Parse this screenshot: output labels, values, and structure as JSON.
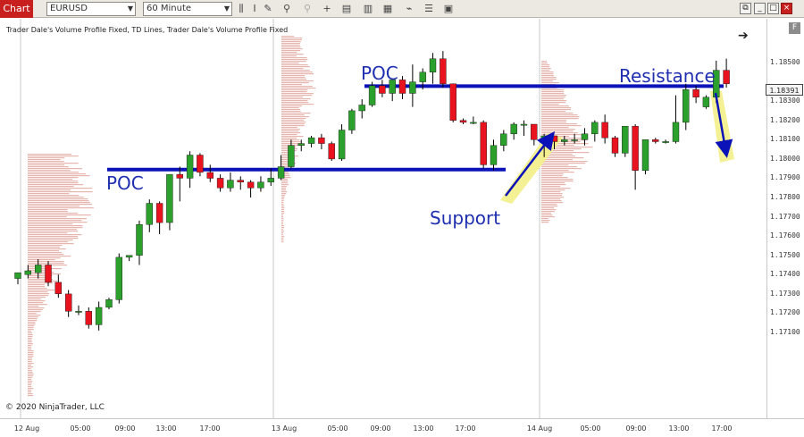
{
  "toolbar": {
    "tab_label": "Chart",
    "instrument": "EURUSD",
    "period": "60 Minute",
    "icons": [
      "bar-type-icon",
      "text-icon",
      "pencil-icon",
      "zoom-in-icon",
      "zoom-out-icon",
      "crosshair-icon",
      "data-box-icon",
      "indicators-icon",
      "strategies-icon",
      "drawing-tools-icon",
      "properties-icon",
      "templates-icon"
    ],
    "window_buttons": [
      "restore-icon",
      "minimize-icon",
      "maximize-icon",
      "close-icon"
    ]
  },
  "legend": "Trader Dale's Volume Profile Fixed, TD Lines, Trader Dale's Volume Profile Fixed",
  "copyright": "© 2020 NinjaTrader, LLC",
  "f_button": "F",
  "current_price": "1.18391",
  "annotations": {
    "poc_left": "POC",
    "poc_top": "POC",
    "support": "Support",
    "resistance": "Resistance"
  },
  "colors": {
    "up_candle": "#2ca02c",
    "down_candle": "#e8131f",
    "level_line": "#0b12b8",
    "profile": "#e5b5ae",
    "highlight": "#f3f08a",
    "annotation_text": "#1f2fb0"
  },
  "chart_data": {
    "type": "candlestick",
    "instrument": "EURUSD",
    "timeframe": "60 Minute",
    "y_ticks": [
      "1.18500",
      "1.18300",
      "1.18200",
      "1.18100",
      "1.18000",
      "1.17900",
      "1.17800",
      "1.17700",
      "1.17600",
      "1.17500",
      "1.17400",
      "1.17300",
      "1.17200",
      "1.17100"
    ],
    "x_ticks": [
      "12 Aug",
      "05:00",
      "09:00",
      "13:00",
      "17:00",
      "13 Aug",
      "05:00",
      "09:00",
      "13:00",
      "17:00",
      "14 Aug",
      "05:00",
      "09:00",
      "13:00",
      "17:00"
    ],
    "ylim": [
      1.1708,
      1.1861
    ],
    "levels": [
      {
        "label": "POC",
        "price": 1.17945
      },
      {
        "label": "POC / Resistance",
        "price": 1.18378
      }
    ],
    "candles": [
      {
        "o": 1.1738,
        "h": 1.1741,
        "l": 1.1735,
        "c": 1.1741
      },
      {
        "o": 1.174,
        "h": 1.1745,
        "l": 1.1738,
        "c": 1.1742
      },
      {
        "o": 1.1741,
        "h": 1.1748,
        "l": 1.1738,
        "c": 1.1745
      },
      {
        "o": 1.1745,
        "h": 1.1747,
        "l": 1.1734,
        "c": 1.1736
      },
      {
        "o": 1.1736,
        "h": 1.174,
        "l": 1.1728,
        "c": 1.173
      },
      {
        "o": 1.173,
        "h": 1.1732,
        "l": 1.1718,
        "c": 1.1721
      },
      {
        "o": 1.1721,
        "h": 1.1724,
        "l": 1.1719,
        "c": 1.1721
      },
      {
        "o": 1.1721,
        "h": 1.1723,
        "l": 1.1712,
        "c": 1.1714
      },
      {
        "o": 1.1714,
        "h": 1.1726,
        "l": 1.1711,
        "c": 1.1723
      },
      {
        "o": 1.1723,
        "h": 1.1728,
        "l": 1.1722,
        "c": 1.1727
      },
      {
        "o": 1.1727,
        "h": 1.1751,
        "l": 1.1725,
        "c": 1.1749
      },
      {
        "o": 1.1749,
        "h": 1.175,
        "l": 1.1747,
        "c": 1.175
      },
      {
        "o": 1.175,
        "h": 1.1768,
        "l": 1.1745,
        "c": 1.1766
      },
      {
        "o": 1.1766,
        "h": 1.1779,
        "l": 1.1762,
        "c": 1.1777
      },
      {
        "o": 1.1777,
        "h": 1.1778,
        "l": 1.1761,
        "c": 1.1767
      },
      {
        "o": 1.1767,
        "h": 1.1792,
        "l": 1.1763,
        "c": 1.1792
      },
      {
        "o": 1.1792,
        "h": 1.1796,
        "l": 1.1778,
        "c": 1.179
      },
      {
        "o": 1.179,
        "h": 1.1804,
        "l": 1.1785,
        "c": 1.1802
      },
      {
        "o": 1.1802,
        "h": 1.1803,
        "l": 1.1791,
        "c": 1.1793
      },
      {
        "o": 1.1793,
        "h": 1.1797,
        "l": 1.1788,
        "c": 1.179
      },
      {
        "o": 1.179,
        "h": 1.1792,
        "l": 1.1783,
        "c": 1.1785
      },
      {
        "o": 1.1785,
        "h": 1.1793,
        "l": 1.1783,
        "c": 1.1789
      },
      {
        "o": 1.1789,
        "h": 1.1791,
        "l": 1.1784,
        "c": 1.1788
      },
      {
        "o": 1.1788,
        "h": 1.1789,
        "l": 1.178,
        "c": 1.1785
      },
      {
        "o": 1.1785,
        "h": 1.1791,
        "l": 1.1783,
        "c": 1.1788
      },
      {
        "o": 1.1788,
        "h": 1.1795,
        "l": 1.1786,
        "c": 1.179
      },
      {
        "o": 1.179,
        "h": 1.1802,
        "l": 1.1789,
        "c": 1.1796
      },
      {
        "o": 1.1796,
        "h": 1.181,
        "l": 1.1795,
        "c": 1.1807
      },
      {
        "o": 1.1807,
        "h": 1.181,
        "l": 1.1804,
        "c": 1.1808
      },
      {
        "o": 1.1808,
        "h": 1.1812,
        "l": 1.1806,
        "c": 1.1811
      },
      {
        "o": 1.1811,
        "h": 1.1813,
        "l": 1.1805,
        "c": 1.1808
      },
      {
        "o": 1.1808,
        "h": 1.1809,
        "l": 1.1799,
        "c": 1.18
      },
      {
        "o": 1.18,
        "h": 1.1818,
        "l": 1.1799,
        "c": 1.1815
      },
      {
        "o": 1.1815,
        "h": 1.1826,
        "l": 1.1813,
        "c": 1.1825
      },
      {
        "o": 1.1825,
        "h": 1.1831,
        "l": 1.1821,
        "c": 1.1828
      },
      {
        "o": 1.1828,
        "h": 1.184,
        "l": 1.1827,
        "c": 1.1838
      },
      {
        "o": 1.1838,
        "h": 1.1841,
        "l": 1.1832,
        "c": 1.1834
      },
      {
        "o": 1.1834,
        "h": 1.1841,
        "l": 1.183,
        "c": 1.1841
      },
      {
        "o": 1.1841,
        "h": 1.1843,
        "l": 1.1831,
        "c": 1.1834
      },
      {
        "o": 1.1834,
        "h": 1.1849,
        "l": 1.1827,
        "c": 1.184
      },
      {
        "o": 1.184,
        "h": 1.1847,
        "l": 1.1836,
        "c": 1.1845
      },
      {
        "o": 1.1845,
        "h": 1.1855,
        "l": 1.1839,
        "c": 1.1852
      },
      {
        "o": 1.1852,
        "h": 1.1856,
        "l": 1.1837,
        "c": 1.1839
      },
      {
        "o": 1.1839,
        "h": 1.1839,
        "l": 1.1819,
        "c": 1.182
      },
      {
        "o": 1.182,
        "h": 1.1821,
        "l": 1.1818,
        "c": 1.1819
      },
      {
        "o": 1.1819,
        "h": 1.1822,
        "l": 1.1818,
        "c": 1.1819
      },
      {
        "o": 1.1819,
        "h": 1.182,
        "l": 1.1795,
        "c": 1.1797
      },
      {
        "o": 1.1797,
        "h": 1.181,
        "l": 1.1794,
        "c": 1.1807
      },
      {
        "o": 1.1807,
        "h": 1.1815,
        "l": 1.1804,
        "c": 1.1813
      },
      {
        "o": 1.1813,
        "h": 1.1819,
        "l": 1.181,
        "c": 1.1818
      },
      {
        "o": 1.1818,
        "h": 1.182,
        "l": 1.1812,
        "c": 1.1818
      },
      {
        "o": 1.1818,
        "h": 1.1818,
        "l": 1.1807,
        "c": 1.181
      },
      {
        "o": 1.181,
        "h": 1.1813,
        "l": 1.1801,
        "c": 1.1812
      },
      {
        "o": 1.1812,
        "h": 1.1812,
        "l": 1.1805,
        "c": 1.1809
      },
      {
        "o": 1.1809,
        "h": 1.1812,
        "l": 1.1807,
        "c": 1.181
      },
      {
        "o": 1.181,
        "h": 1.1813,
        "l": 1.1808,
        "c": 1.181
      },
      {
        "o": 1.181,
        "h": 1.1816,
        "l": 1.1807,
        "c": 1.1813
      },
      {
        "o": 1.1813,
        "h": 1.182,
        "l": 1.1809,
        "c": 1.1819
      },
      {
        "o": 1.1819,
        "h": 1.1823,
        "l": 1.1808,
        "c": 1.1811
      },
      {
        "o": 1.1811,
        "h": 1.1812,
        "l": 1.1801,
        "c": 1.1803
      },
      {
        "o": 1.1803,
        "h": 1.1817,
        "l": 1.1801,
        "c": 1.1817
      },
      {
        "o": 1.1817,
        "h": 1.1818,
        "l": 1.1784,
        "c": 1.1794
      },
      {
        "o": 1.1794,
        "h": 1.181,
        "l": 1.1792,
        "c": 1.181
      },
      {
        "o": 1.181,
        "h": 1.1811,
        "l": 1.1808,
        "c": 1.1809
      },
      {
        "o": 1.1809,
        "h": 1.181,
        "l": 1.1808,
        "c": 1.1809
      },
      {
        "o": 1.1809,
        "h": 1.1833,
        "l": 1.1808,
        "c": 1.1819
      },
      {
        "o": 1.1819,
        "h": 1.1839,
        "l": 1.1815,
        "c": 1.1836
      },
      {
        "o": 1.1836,
        "h": 1.1838,
        "l": 1.1829,
        "c": 1.1832
      },
      {
        "o": 1.1827,
        "h": 1.1833,
        "l": 1.1826,
        "c": 1.1832
      },
      {
        "o": 1.1832,
        "h": 1.1851,
        "l": 1.1829,
        "c": 1.1846
      },
      {
        "o": 1.1846,
        "h": 1.1852,
        "l": 1.1837,
        "c": 1.1839
      }
    ]
  }
}
